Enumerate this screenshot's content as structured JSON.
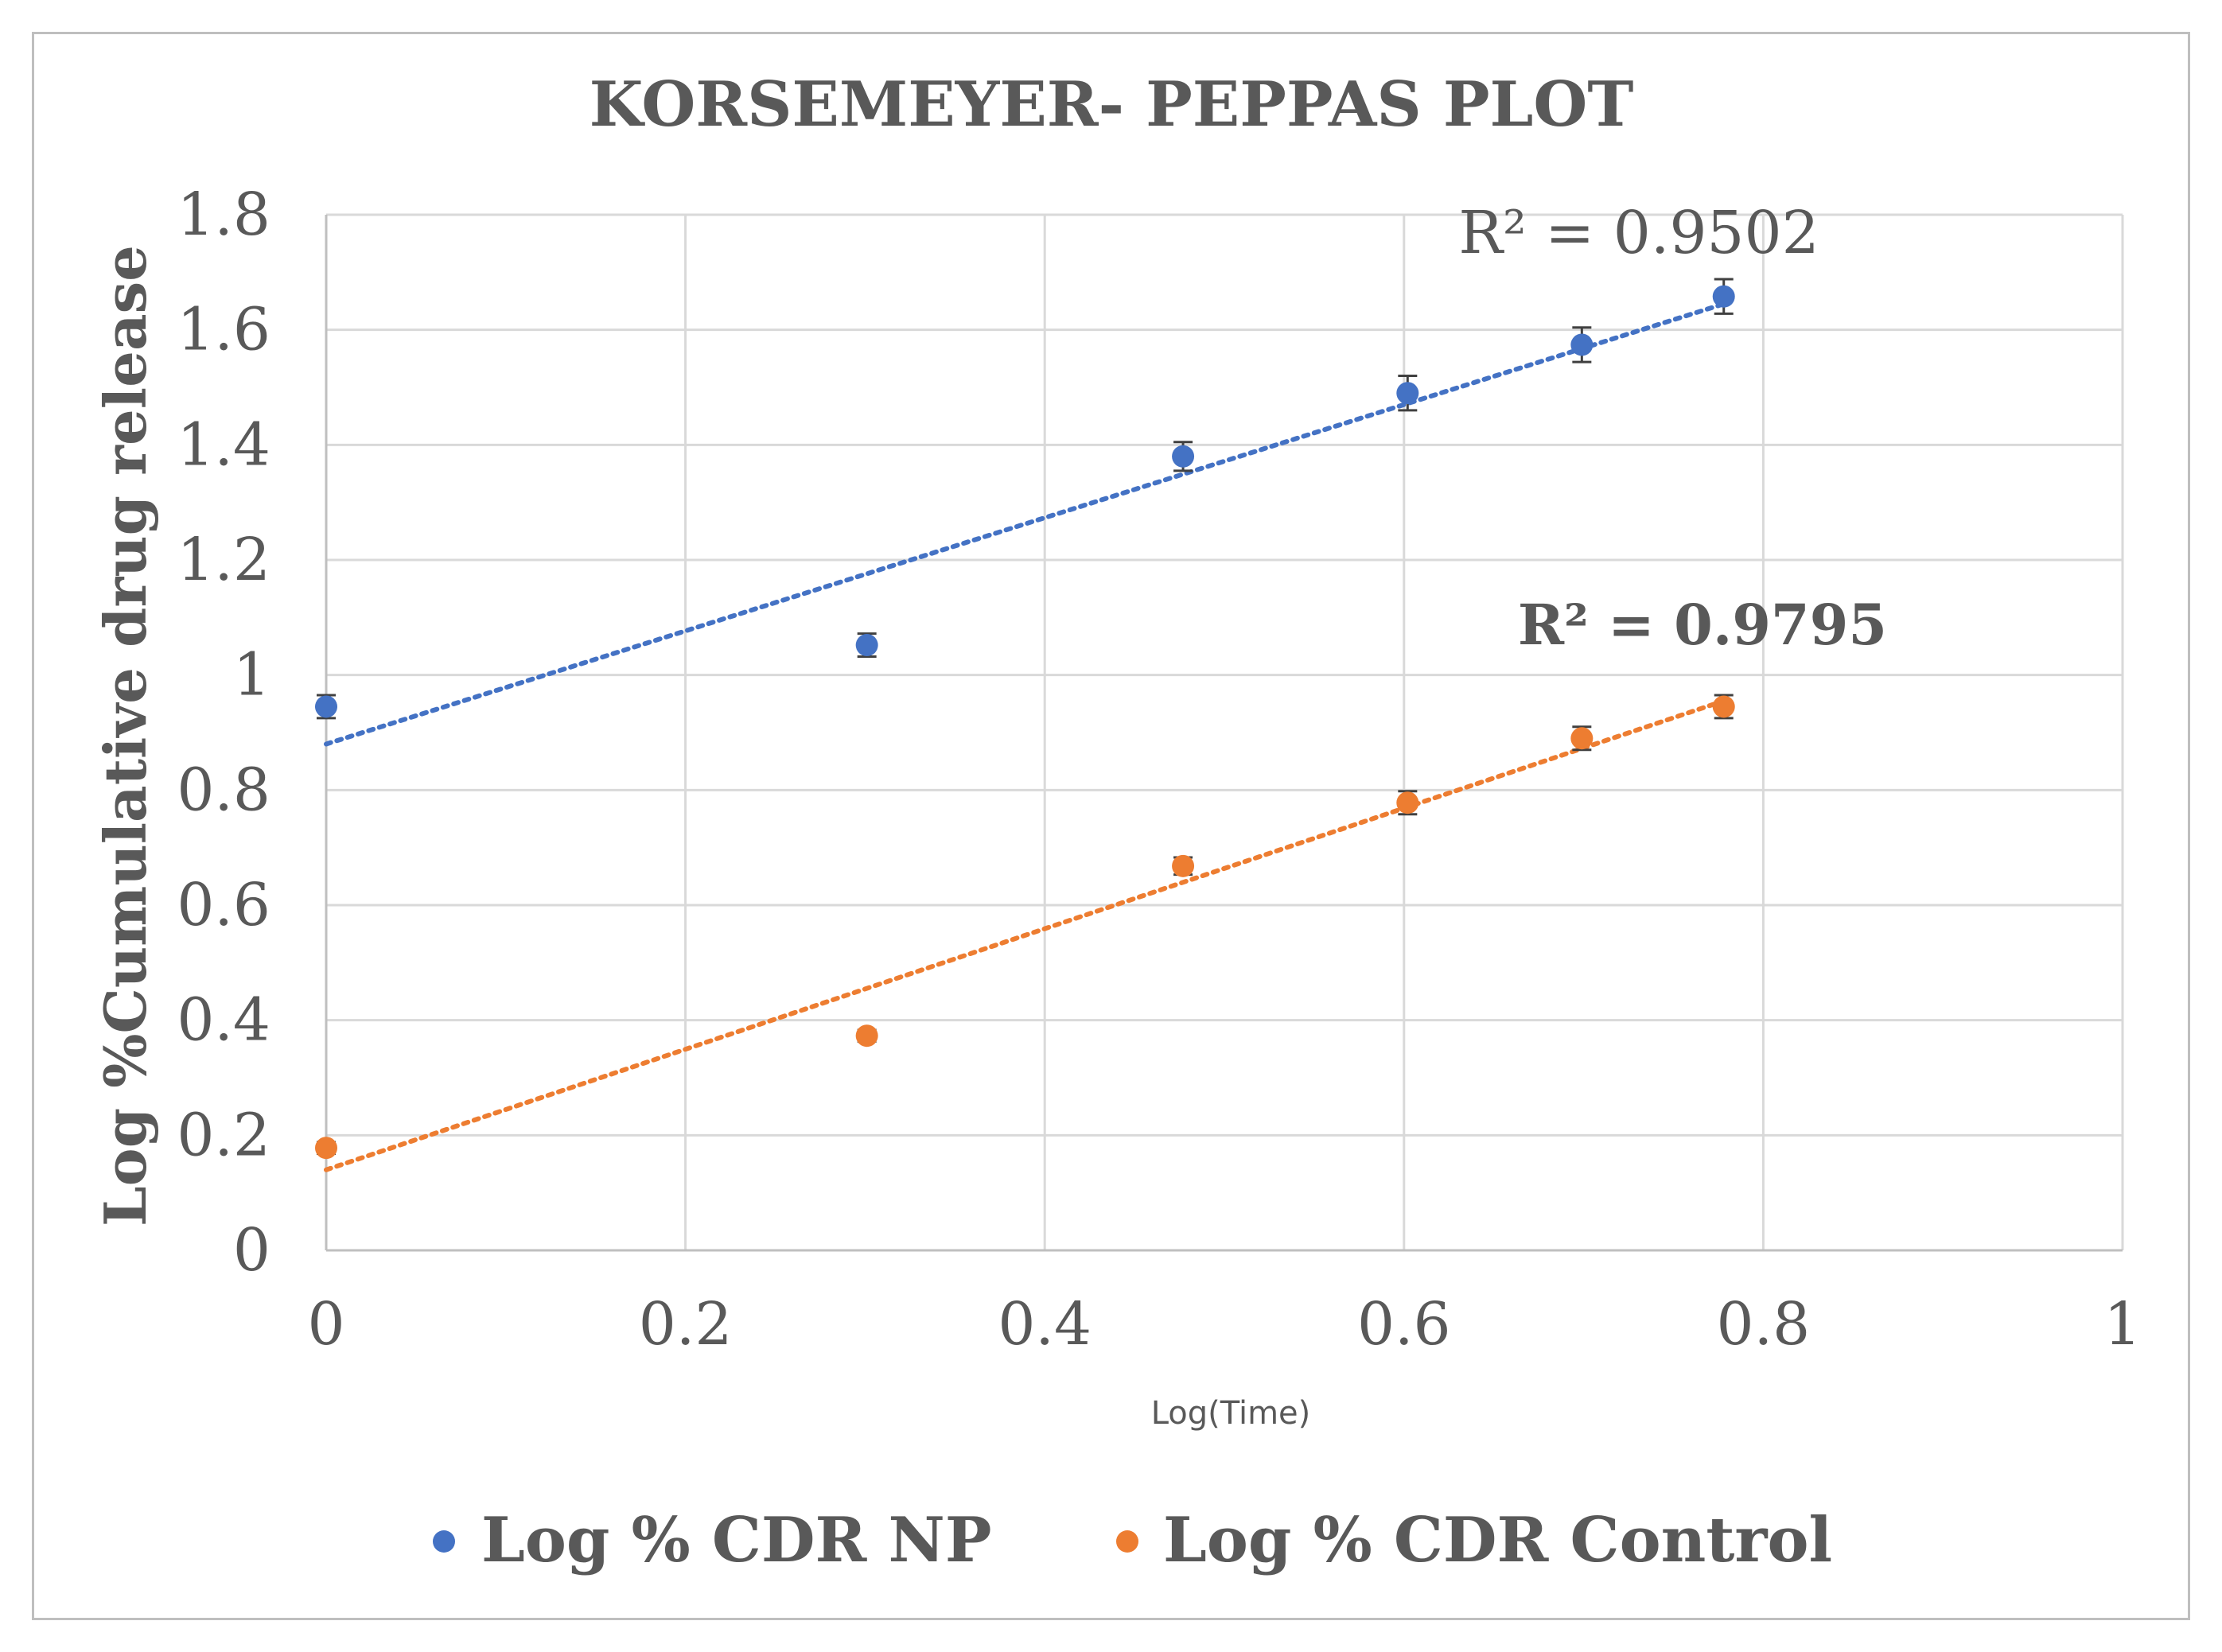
{
  "chart_data": {
    "type": "scatter",
    "title": "KORSEMEYER- PEPPAS PLOT",
    "xlabel": "Log(Time)",
    "ylabel": "Log  %Cumulative drug release",
    "xlim": [
      0,
      1
    ],
    "ylim": [
      0,
      1.8
    ],
    "xticks": [
      "0",
      "0.2",
      "0.4",
      "0.6",
      "0.8",
      "1"
    ],
    "yticks": [
      "0",
      "0.2",
      "0.4",
      "0.6",
      "0.8",
      "1",
      "1.2",
      "1.4",
      "1.6",
      "1.8"
    ],
    "grid": true,
    "legend_position": "bottom",
    "series": [
      {
        "name": "Log  % CDR NP",
        "color": "#4472c4",
        "x": [
          0,
          0.301,
          0.477,
          0.602,
          0.699,
          0.778
        ],
        "y": [
          0.945,
          1.052,
          1.38,
          1.49,
          1.574,
          1.658
        ],
        "error": [
          0.02,
          0.02,
          0.025,
          0.03,
          0.03,
          0.03
        ],
        "trendline": {
          "type": "linear",
          "style": "dotted",
          "x": [
            0,
            0.778
          ],
          "y": [
            0.88,
            1.645
          ]
        },
        "r2_label": "R² = 0.9502"
      },
      {
        "name": "Log % CDR Control",
        "color": "#ed7d31",
        "x": [
          0,
          0.301,
          0.477,
          0.602,
          0.699,
          0.778
        ],
        "y": [
          0.178,
          0.373,
          0.668,
          0.778,
          0.89,
          0.945
        ],
        "error": [
          0.01,
          0.01,
          0.015,
          0.02,
          0.02,
          0.02
        ],
        "trendline": {
          "type": "linear",
          "style": "dotted",
          "x": [
            0,
            0.778
          ],
          "y": [
            0.14,
            0.955
          ]
        },
        "r2_label": "R² = 0.9795"
      }
    ]
  }
}
